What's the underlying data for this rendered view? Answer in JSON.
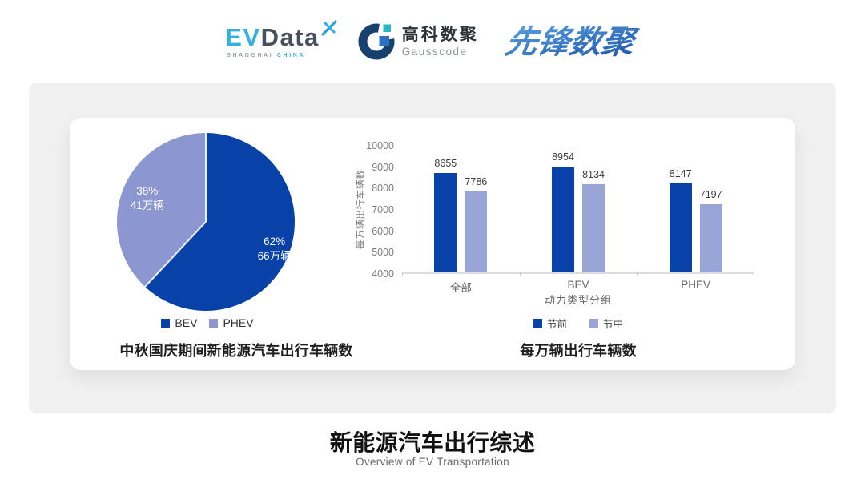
{
  "header": {
    "evdata": {
      "part1": "EV",
      "part2": "Data",
      "tagline_left": "SHANGHAI",
      "tagline_right": "CHINA"
    },
    "gausscode": {
      "name_cn": "高科数聚",
      "name_en": "Gausscode"
    },
    "pioneer": {
      "name": "先锋数聚"
    }
  },
  "colors": {
    "primary_blue": "#0841a8",
    "pie_light": "#8c97d1",
    "bar_light": "#9aa5d7",
    "panel_gray": "#f0f0f1"
  },
  "chart_data": [
    {
      "type": "pie",
      "title": "中秋国庆期间新能源汽车出行车辆数",
      "slices": [
        {
          "label": "BEV",
          "percent": 62,
          "amount": "66万辆",
          "color": "#0841a8"
        },
        {
          "label": "PHEV",
          "percent": 38,
          "amount": "41万辆",
          "color": "#8c97d1"
        }
      ],
      "start_angle_deg": 0,
      "direction": "clockwise",
      "legend_position": "bottom"
    },
    {
      "type": "bar",
      "title": "每万辆出行车辆数",
      "categories": [
        "全部",
        "BEV",
        "PHEV"
      ],
      "series": [
        {
          "name": "节前",
          "values": [
            8655,
            8954,
            8147
          ],
          "color": "#0841a8"
        },
        {
          "name": "节中",
          "values": [
            7786,
            8134,
            7197
          ],
          "color": "#9aa5d7"
        }
      ],
      "xlabel": "动力类型分组",
      "ylabel": "每万辆出行车辆数",
      "ylim": [
        4000,
        10000
      ],
      "ytick_step": 1000,
      "grid": false,
      "legend_position": "bottom"
    }
  ],
  "footer": {
    "title": "新能源汽车出行综述",
    "subtitle": "Overview of EV Transportation"
  }
}
